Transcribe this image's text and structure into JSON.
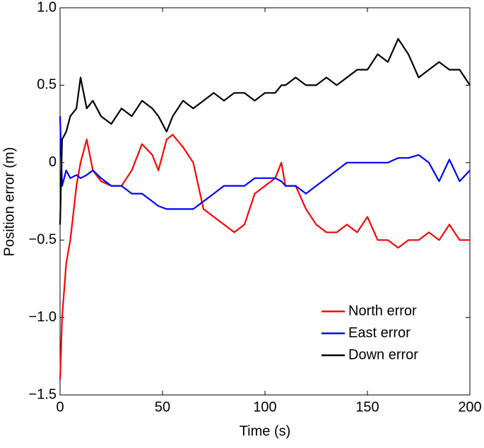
{
  "chart_data": {
    "type": "line",
    "xlabel": "Time (s)",
    "ylabel": "Position error (m)",
    "x": [
      0,
      1,
      3,
      5,
      8,
      10,
      13,
      16,
      20,
      25,
      30,
      35,
      40,
      45,
      48,
      52,
      55,
      60,
      65,
      70,
      75,
      80,
      85,
      90,
      95,
      100,
      105,
      108,
      110,
      115,
      120,
      125,
      130,
      135,
      140,
      145,
      150,
      155,
      160,
      165,
      170,
      175,
      180,
      185,
      190,
      195,
      200
    ],
    "series": [
      {
        "name": "North error",
        "color": "#ff0000",
        "values": [
          -1.4,
          -1.0,
          -0.65,
          -0.5,
          -0.15,
          0.0,
          0.15,
          -0.05,
          -0.12,
          -0.15,
          -0.15,
          -0.05,
          0.12,
          0.05,
          -0.05,
          0.15,
          0.18,
          0.1,
          0.0,
          -0.3,
          -0.35,
          -0.4,
          -0.45,
          -0.4,
          -0.2,
          -0.15,
          -0.1,
          0.0,
          -0.15,
          -0.15,
          -0.3,
          -0.4,
          -0.45,
          -0.45,
          -0.4,
          -0.45,
          -0.35,
          -0.5,
          -0.5,
          -0.55,
          -0.5,
          -0.5,
          -0.45,
          -0.5,
          -0.4,
          -0.5,
          -0.5
        ]
      },
      {
        "name": "East error",
        "color": "#0000ff",
        "values": [
          0.3,
          -0.15,
          -0.05,
          -0.1,
          -0.08,
          -0.1,
          -0.08,
          -0.05,
          -0.1,
          -0.15,
          -0.15,
          -0.2,
          -0.2,
          -0.25,
          -0.28,
          -0.3,
          -0.3,
          -0.3,
          -0.3,
          -0.25,
          -0.2,
          -0.15,
          -0.15,
          -0.15,
          -0.1,
          -0.1,
          -0.1,
          -0.12,
          -0.15,
          -0.15,
          -0.2,
          -0.15,
          -0.1,
          -0.05,
          0,
          0,
          0,
          0,
          0,
          0.03,
          0.03,
          0.05,
          0,
          -0.12,
          0.02,
          -0.12,
          -0.05
        ]
      },
      {
        "name": "Down error",
        "color": "#000000",
        "values": [
          -0.4,
          0.15,
          0.2,
          0.3,
          0.35,
          0.55,
          0.35,
          0.4,
          0.3,
          0.25,
          0.35,
          0.3,
          0.4,
          0.35,
          0.3,
          0.2,
          0.3,
          0.4,
          0.35,
          0.4,
          0.45,
          0.4,
          0.45,
          0.45,
          0.4,
          0.45,
          0.45,
          0.5,
          0.5,
          0.55,
          0.5,
          0.5,
          0.55,
          0.5,
          0.55,
          0.6,
          0.6,
          0.7,
          0.65,
          0.8,
          0.7,
          0.55,
          0.6,
          0.65,
          0.6,
          0.6,
          0.5
        ]
      }
    ],
    "xlim": [
      0,
      200
    ],
    "xticks": [
      0,
      50,
      100,
      150,
      200
    ],
    "ylim": [
      -1.5,
      1
    ],
    "yticks": [
      {
        "value": -1.5,
        "label": "−1.5"
      },
      {
        "value": -1,
        "label": "−1.0"
      },
      {
        "value": -0.5,
        "label": "−0.5"
      },
      0,
      0.5,
      {
        "value": 1,
        "label": "1.0"
      }
    ],
    "legend": "lower right"
  }
}
